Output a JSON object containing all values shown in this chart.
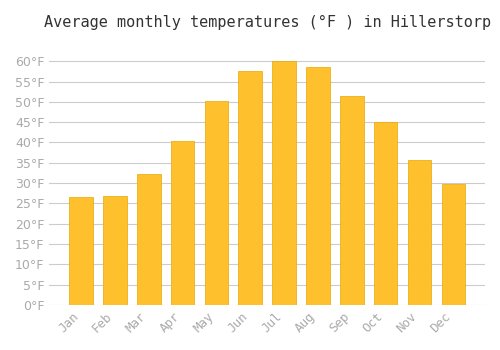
{
  "title": "Average monthly temperatures (°F ) in Hillerstorp",
  "months": [
    "Jan",
    "Feb",
    "Mar",
    "Apr",
    "May",
    "Jun",
    "Jul",
    "Aug",
    "Sep",
    "Oct",
    "Nov",
    "Dec"
  ],
  "values": [
    26.5,
    26.8,
    32.2,
    40.3,
    50.2,
    57.5,
    60.0,
    58.5,
    51.5,
    45.0,
    35.8,
    29.7
  ],
  "bar_color": "#FFC02E",
  "bar_edge_color": "#E8A800",
  "background_color": "#FFFFFF",
  "grid_color": "#CCCCCC",
  "tick_label_color": "#AAAAAA",
  "title_color": "#333333",
  "ylim": [
    0,
    65
  ],
  "yticks": [
    0,
    5,
    10,
    15,
    20,
    25,
    30,
    35,
    40,
    45,
    50,
    55,
    60
  ],
  "ylabel_suffix": "°F",
  "title_fontsize": 11,
  "tick_fontsize": 9
}
